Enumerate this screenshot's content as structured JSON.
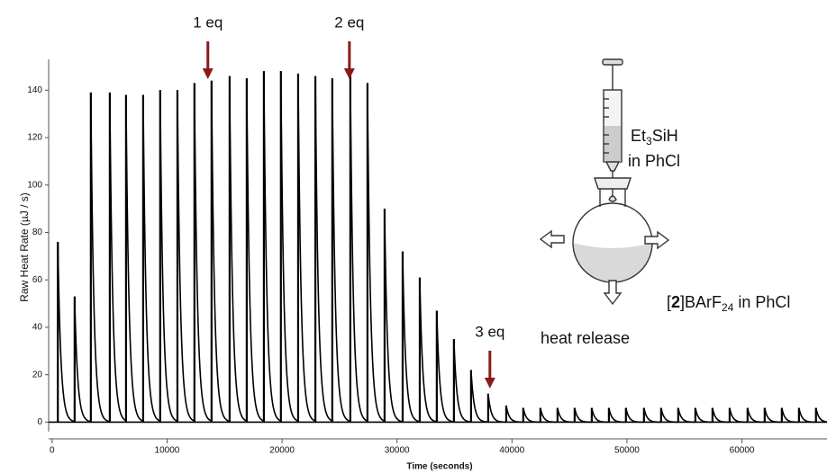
{
  "chart_data": {
    "type": "spikes",
    "x_label": "Time (seconds)",
    "y_label": "Raw Heat Rate (µJ / s)",
    "color": "#000000",
    "xlim": [
      -300,
      67400
    ],
    "ylim": [
      -4,
      153
    ],
    "xticks": [
      0,
      10000,
      20000,
      30000,
      40000,
      50000,
      60000
    ],
    "yticks": [
      0,
      20,
      40,
      60,
      80,
      100,
      120,
      140
    ],
    "x": [
      500,
      1960,
      3370,
      5020,
      6430,
      7920,
      9400,
      10900,
      12380,
      13870,
      15440,
      16930,
      18420,
      19900,
      21400,
      22900,
      24370,
      25940,
      27430,
      28920,
      30490,
      31980,
      33460,
      34950,
      36440,
      37930,
      39500,
      40980,
      42470,
      43960,
      45450,
      46940,
      48430,
      49910,
      51480,
      52970,
      54460,
      55950,
      57440,
      58930,
      60490,
      61980,
      63470,
      64960,
      66440
    ],
    "values": [
      76,
      53,
      139,
      139,
      138,
      138,
      140,
      140,
      143,
      144,
      146,
      145,
      148,
      148,
      147,
      146,
      145,
      146,
      143,
      90,
      72,
      61,
      47,
      35,
      22,
      12,
      7,
      6,
      6,
      6,
      6,
      6,
      6,
      6,
      6,
      6,
      6,
      6,
      6,
      6,
      6,
      6,
      6,
      6,
      6
    ],
    "annotations": [
      {
        "text": "1 eq",
        "x": 13550,
        "color": "#8b1a1a"
      },
      {
        "text": "2 eq",
        "x": 25860,
        "color": "#8b1a1a"
      },
      {
        "text": "3 eq",
        "x": 38080,
        "color": "#8b1a1a"
      }
    ]
  },
  "inset": {
    "reagent": {
      "main": "Et",
      "sub": "3",
      "rest": "SiH"
    },
    "reagent_solvent": "in PhCl",
    "flask": {
      "open": "[",
      "bold": "2",
      "mid": "]BArF",
      "sub": "24",
      "rest": " in PhCl"
    },
    "heat": "heat release"
  }
}
